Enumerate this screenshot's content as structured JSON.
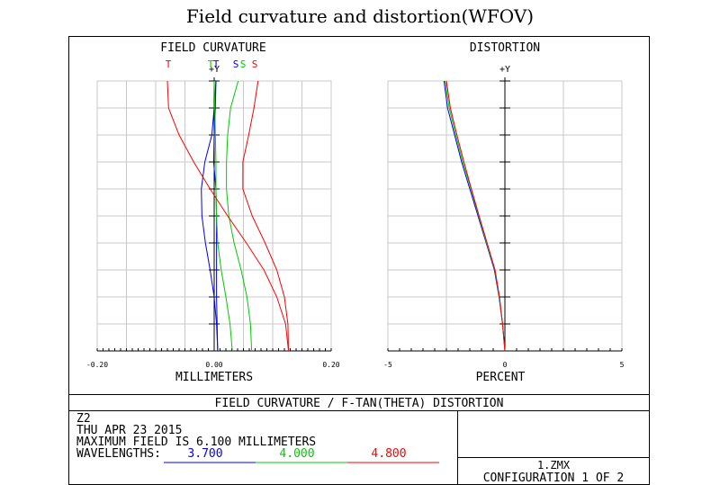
{
  "page_title": "Field curvature and distortion(WFOV)",
  "chart_data": [
    {
      "type": "line",
      "title": "FIELD CURVATURE",
      "xlabel": "MILLIMETERS",
      "ylabel": "+Y",
      "xlim": [
        -0.2,
        0.2
      ],
      "ylim": [
        0,
        6.1
      ],
      "x_tick_labels": [
        "-0.20",
        "0.00",
        "0.20"
      ],
      "grid": true,
      "legend": [
        {
          "label": "T",
          "color": "#ff0000"
        },
        {
          "label": "T",
          "color": "#00cc00"
        },
        {
          "label": "T",
          "color": "#0000ff"
        },
        {
          "label": "S",
          "color": "#0000ff"
        },
        {
          "label": "S",
          "color": "#00cc00"
        },
        {
          "label": "S",
          "color": "#ff0000"
        }
      ],
      "y": [
        0,
        0.61,
        1.22,
        1.83,
        2.44,
        3.05,
        3.66,
        4.27,
        4.88,
        5.49,
        6.1
      ],
      "series": [
        {
          "wavelength": "3.700",
          "curve": "T",
          "color": "#0000ff",
          "x": [
            0.006,
            0.004,
            0.0,
            -0.007,
            -0.015,
            -0.021,
            -0.022,
            -0.016,
            -0.004,
            0.0,
            0.003
          ]
        },
        {
          "wavelength": "3.700",
          "curve": "S",
          "color": "#0000ff",
          "x": [
            0.006,
            0.005,
            0.004,
            0.004,
            0.004,
            0.004,
            0.003,
            -0.001,
            0.0,
            0.002,
            0.003
          ]
        },
        {
          "wavelength": "4.000",
          "curve": "T",
          "color": "#00cc00",
          "x": [
            0.031,
            0.027,
            0.02,
            0.012,
            0.006,
            0.004,
            0.003,
            0.003,
            0.002,
            0.001,
            0.0
          ]
        },
        {
          "wavelength": "4.000",
          "curve": "S",
          "color": "#00cc00",
          "x": [
            0.064,
            0.062,
            0.056,
            0.046,
            0.034,
            0.025,
            0.021,
            0.021,
            0.023,
            0.028,
            0.041
          ]
        },
        {
          "wavelength": "4.800",
          "curve": "T",
          "color": "#ff0000",
          "x": [
            0.127,
            0.122,
            0.107,
            0.085,
            0.055,
            0.023,
            -0.007,
            -0.035,
            -0.06,
            -0.078,
            -0.08
          ]
        },
        {
          "wavelength": "4.800",
          "curve": "S",
          "color": "#ff0000",
          "x": [
            0.127,
            0.126,
            0.12,
            0.107,
            0.087,
            0.065,
            0.049,
            0.049,
            0.059,
            0.068,
            0.075
          ]
        }
      ]
    },
    {
      "type": "line",
      "title": "DISTORTION",
      "xlabel": "PERCENT",
      "ylabel": "+Y",
      "xlim": [
        -5,
        5
      ],
      "ylim": [
        0,
        6.1
      ],
      "x_tick_labels": [
        "-5",
        "0",
        "5"
      ],
      "grid": true,
      "y": [
        0,
        0.61,
        1.22,
        1.83,
        2.44,
        3.05,
        3.66,
        4.27,
        4.88,
        5.49,
        6.1
      ],
      "series": [
        {
          "wavelength": "3.700",
          "color": "#0000ff",
          "x": [
            0.0,
            -0.1,
            -0.25,
            -0.45,
            -0.8,
            -1.15,
            -1.5,
            -1.85,
            -2.15,
            -2.45,
            -2.6
          ]
        },
        {
          "wavelength": "4.000",
          "color": "#00cc00",
          "x": [
            0.0,
            -0.1,
            -0.24,
            -0.43,
            -0.78,
            -1.12,
            -1.45,
            -1.8,
            -2.1,
            -2.38,
            -2.55
          ]
        },
        {
          "wavelength": "4.800",
          "color": "#ff0000",
          "x": [
            0.0,
            -0.1,
            -0.23,
            -0.42,
            -0.76,
            -1.1,
            -1.43,
            -1.75,
            -2.05,
            -2.33,
            -2.5
          ]
        }
      ]
    }
  ],
  "footer": {
    "caption": "FIELD CURVATURE / F-TAN(THETA) DISTORTION",
    "lens_name": "Z2",
    "date": "THU APR 23 2015",
    "max_field": "MAXIMUM FIELD IS 6.100 MILLIMETERS",
    "wavelengths_label": "WAVELENGTHS:",
    "wavelengths": [
      {
        "value": "3.700",
        "color": "#0000ff"
      },
      {
        "value": "4.000",
        "color": "#00cc00"
      },
      {
        "value": "4.800",
        "color": "#ff0000"
      }
    ],
    "file_name": "1.ZMX",
    "configuration": "CONFIGURATION 1 OF 2"
  }
}
